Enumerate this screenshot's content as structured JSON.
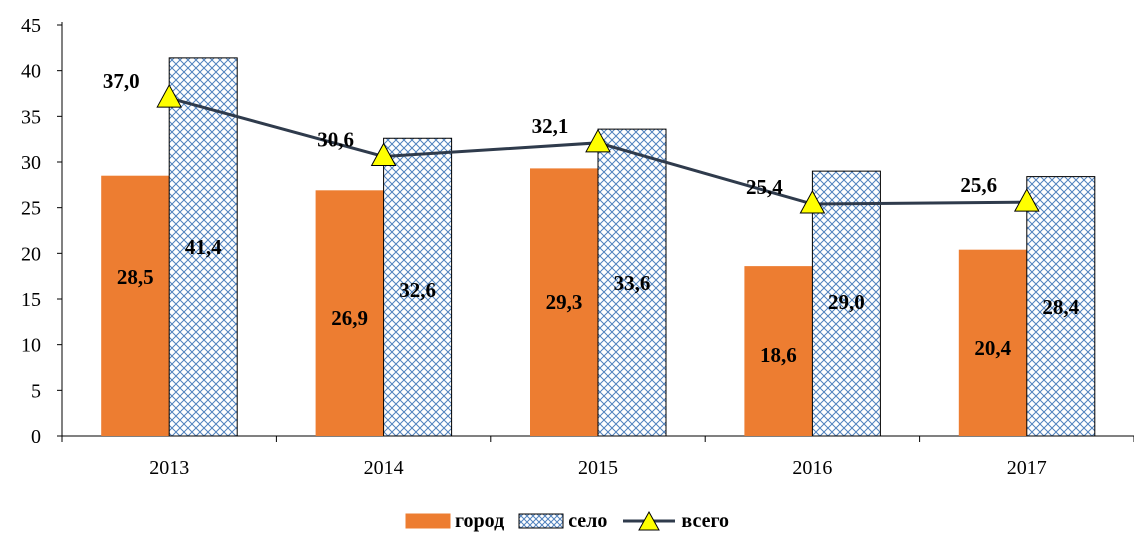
{
  "chart_data": {
    "type": "bar",
    "categories": [
      "2013",
      "2014",
      "2015",
      "2016",
      "2017"
    ],
    "series": [
      {
        "name": "город",
        "kind": "bar",
        "color": "#ED7D31",
        "values": [
          28.5,
          26.9,
          29.3,
          18.6,
          20.4
        ],
        "labels": [
          "28,5",
          "26,9",
          "29,3",
          "18,6",
          "20,4"
        ]
      },
      {
        "name": "село",
        "kind": "bar",
        "pattern": "crosshatch",
        "color": "#4F81BD",
        "values": [
          41.4,
          32.6,
          33.6,
          29.0,
          28.4
        ],
        "labels": [
          "41,4",
          "32,6",
          "33,6",
          "29,0",
          "28,4"
        ]
      },
      {
        "name": "всего",
        "kind": "line",
        "marker": "triangle",
        "marker_color": "#FFFF00",
        "color": "#2F3B4C",
        "values": [
          37.0,
          30.6,
          32.1,
          25.4,
          25.6
        ],
        "labels": [
          "37,0",
          "30,6",
          "32,1",
          "25,4",
          "25,6"
        ]
      }
    ],
    "yticks": [
      "0",
      "5",
      "10",
      "15",
      "20",
      "25",
      "30",
      "35",
      "40",
      "45"
    ],
    "ylim": [
      0,
      45
    ],
    "grid": false,
    "legend_position": "bottom"
  }
}
